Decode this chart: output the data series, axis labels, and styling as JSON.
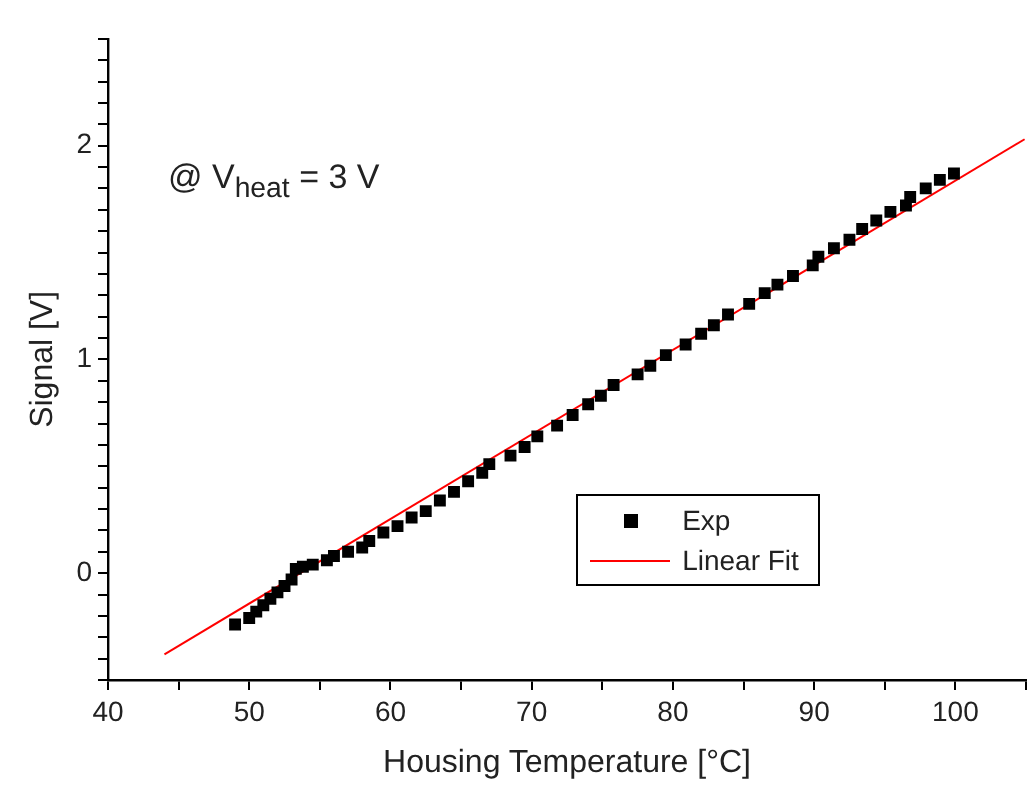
{
  "chart_data": {
    "type": "scatter",
    "xlabel": "Housing Temperature [°C]",
    "ylabel": "Signal [V]",
    "annotations": [
      "@ V$_{heat}$ = 3 V"
    ],
    "xlim": [
      40,
      105
    ],
    "ylim": [
      -0.5,
      2.5
    ],
    "xticks": [
      40,
      {
        "value": 45,
        "label": null
      },
      50,
      {
        "value": 55,
        "label": null
      },
      60,
      {
        "value": 65,
        "label": null
      },
      70,
      {
        "value": 75,
        "label": null
      },
      80,
      {
        "value": 85,
        "label": null
      },
      90,
      {
        "value": 95,
        "label": null
      },
      100,
      {
        "value": 105,
        "label": null
      }
    ],
    "yticks": [
      {
        "value": -0.5,
        "label": null
      },
      {
        "value": -0.4,
        "label": null
      },
      {
        "value": -0.3,
        "label": null
      },
      {
        "value": -0.2,
        "label": null
      },
      {
        "value": -0.1,
        "label": null
      },
      0,
      {
        "value": 0.1,
        "label": null
      },
      {
        "value": 0.2,
        "label": null
      },
      {
        "value": 0.3,
        "label": null
      },
      {
        "value": 0.4,
        "label": null
      },
      {
        "value": 0.5,
        "label": null
      },
      {
        "value": 0.6,
        "label": null
      },
      {
        "value": 0.7,
        "label": null
      },
      {
        "value": 0.8,
        "label": null
      },
      {
        "value": 0.9,
        "label": null
      },
      1,
      {
        "value": 1.1,
        "label": null
      },
      {
        "value": 1.2,
        "label": null
      },
      {
        "value": 1.3,
        "label": null
      },
      {
        "value": 1.4,
        "label": null
      },
      {
        "value": 1.5,
        "label": null
      },
      {
        "value": 1.6,
        "label": null
      },
      {
        "value": 1.7,
        "label": null
      },
      {
        "value": 1.8,
        "label": null
      },
      {
        "value": 1.9,
        "label": null
      },
      2,
      {
        "value": 2.1,
        "label": null
      },
      {
        "value": 2.2,
        "label": null
      },
      {
        "value": 2.3,
        "label": null
      },
      {
        "value": 2.4,
        "label": null
      },
      {
        "value": 2.5,
        "label": null
      }
    ],
    "grid": false,
    "legend": "bottom right",
    "series": [
      {
        "name": "Exp",
        "type": "scatter",
        "marker": "square",
        "color": "#000000",
        "x": [
          49.0,
          50.0,
          50.5,
          51.0,
          51.5,
          52.0,
          52.5,
          53.0,
          53.3,
          53.8,
          54.5,
          55.5,
          56.0,
          57.0,
          58.0,
          58.5,
          59.5,
          60.5,
          61.5,
          62.5,
          63.5,
          64.5,
          65.5,
          66.5,
          67.0,
          68.5,
          69.5,
          70.4,
          71.8,
          72.9,
          74.0,
          74.9,
          75.8,
          77.5,
          78.4,
          79.5,
          80.9,
          82.0,
          82.9,
          83.9,
          85.4,
          86.5,
          87.4,
          88.5,
          89.9,
          90.3,
          91.4,
          92.5,
          93.4,
          94.4,
          95.4,
          96.5,
          96.8,
          97.9,
          98.9,
          99.9
        ],
        "values": [
          -0.24,
          -0.21,
          -0.18,
          -0.15,
          -0.12,
          -0.09,
          -0.06,
          -0.03,
          0.02,
          0.03,
          0.04,
          0.06,
          0.08,
          0.1,
          0.12,
          0.15,
          0.19,
          0.22,
          0.26,
          0.29,
          0.34,
          0.38,
          0.43,
          0.47,
          0.51,
          0.55,
          0.59,
          0.64,
          0.69,
          0.74,
          0.79,
          0.83,
          0.88,
          0.93,
          0.97,
          1.02,
          1.07,
          1.12,
          1.16,
          1.21,
          1.26,
          1.31,
          1.35,
          1.39,
          1.44,
          1.48,
          1.52,
          1.56,
          1.61,
          1.65,
          1.69,
          1.72,
          1.76,
          1.8,
          1.84,
          1.87
        ]
      },
      {
        "name": "Linear Fit",
        "type": "line",
        "marker": "none",
        "line_style": "solid",
        "color": "#ff0000",
        "x": [
          44.0,
          104.9
        ],
        "values": [
          -0.38,
          2.03
        ]
      }
    ]
  }
}
